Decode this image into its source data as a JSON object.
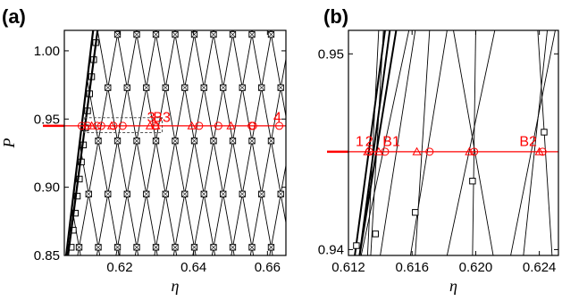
{
  "chart_data": [
    {
      "type": "line",
      "panel": "(a)",
      "xlabel": "η",
      "ylabel": "P",
      "xlim": [
        0.605,
        0.665
      ],
      "ylim": [
        0.85,
        1.015
      ],
      "xticks": [
        "0.62",
        "0.64",
        "0.66"
      ],
      "yticks": [
        "0.85",
        "0.90",
        "0.95",
        "1.00"
      ],
      "grid": false,
      "reference_line": {
        "axis": "y",
        "value": 0.945,
        "color": "#ff0000"
      },
      "dashed_box": {
        "x": [
          0.6105,
          0.6315
        ],
        "y": [
          0.94,
          0.951
        ],
        "color": "#555555"
      },
      "lattice": {
        "slope_magnitude": 15.0,
        "spacing": 0.0052,
        "start_x": 0.6086
      },
      "boundary_curves": [
        {
          "name": "",
          "x": [
            0.6055,
            0.6128
          ],
          "y": [
            0.85,
            1.015
          ]
        },
        {
          "name": "",
          "x": [
            0.606,
            0.614
          ],
          "y": [
            0.85,
            1.015
          ]
        }
      ],
      "markers": [
        {
          "shape": "circle",
          "x": [
            0.6097,
            0.6113,
            0.6139,
            0.615,
            0.6183,
            0.6208,
            0.6296,
            0.6415,
            0.6467,
            0.6557,
            0.6561,
            0.6632
          ],
          "y": 0.945
        },
        {
          "shape": "triangle",
          "x": [
            0.6124,
            0.6178,
            0.6282,
            0.6298,
            0.6395,
            0.6501
          ],
          "y": 0.945
        }
      ],
      "annotations": [
        {
          "text": "3",
          "x": 0.6285,
          "y": 0.948
        },
        {
          "text": "B3",
          "x": 0.6314,
          "y": 0.948
        },
        {
          "text": "4",
          "x": 0.6627,
          "y": 0.948
        }
      ]
    },
    {
      "type": "line",
      "panel": "(b)",
      "xlabel": "η",
      "ylabel": "",
      "xlim": [
        0.612,
        0.6252
      ],
      "ylim": [
        0.9397,
        0.9512
      ],
      "xticks": [
        "0.612",
        "0.616",
        "0.620",
        "0.624"
      ],
      "yticks": [
        "0.94",
        "0.95"
      ],
      "grid": false,
      "reference_line": {
        "axis": "y",
        "value": 0.945,
        "color": "#ff0000"
      },
      "curves": [
        {
          "x": [
            0.6124,
            0.6143
          ],
          "y": [
            0.9397,
            0.9512
          ]
        },
        {
          "x": [
            0.6127,
            0.6146
          ],
          "y": [
            0.9397,
            0.9512
          ]
        },
        {
          "x": [
            0.6127,
            0.615
          ],
          "y": [
            0.9397,
            0.9512
          ]
        },
        {
          "x": [
            0.6132,
            0.6139
          ],
          "y": [
            0.9397,
            0.9512
          ]
        },
        {
          "x": [
            0.6134,
            0.6142
          ],
          "y": [
            0.9397,
            0.9512
          ]
        },
        {
          "x": [
            0.6128,
            0.6158
          ],
          "y": [
            0.9397,
            0.9512
          ]
        },
        {
          "x": [
            0.614,
            0.6162
          ],
          "y": [
            0.9397,
            0.9512
          ]
        },
        {
          "x": [
            0.6162,
            0.6171
          ],
          "y": [
            0.9397,
            0.9512
          ]
        },
        {
          "x": [
            0.6159,
            0.6182
          ],
          "y": [
            0.9397,
            0.9512
          ]
        },
        {
          "x": [
            0.6182,
            0.6212
          ],
          "y": [
            0.9397,
            0.9512
          ]
        },
        {
          "x": [
            0.6198,
            0.62
          ],
          "y": [
            0.9397,
            0.9512
          ]
        },
        {
          "x": [
            0.6211,
            0.6186
          ],
          "y": [
            0.9397,
            0.9512
          ]
        },
        {
          "x": [
            0.6222,
            0.625
          ],
          "y": [
            0.9397,
            0.9512
          ]
        },
        {
          "x": [
            0.623,
            0.6245
          ],
          "y": [
            0.9397,
            0.9512
          ]
        },
        {
          "x": [
            0.6248,
            0.6239
          ],
          "y": [
            0.9397,
            0.9512
          ]
        }
      ],
      "markers": [
        {
          "shape": "circle",
          "x": [
            0.6133,
            0.6143,
            0.6171,
            0.6199,
            0.6242
          ],
          "y": 0.945
        },
        {
          "shape": "triangle",
          "x": [
            0.6132,
            0.6139,
            0.6163,
            0.6196,
            0.624
          ],
          "y": 0.945
        },
        {
          "shape": "square",
          "x": [
            0.6125,
            0.6137,
            0.6162,
            0.6198,
            0.6243
          ],
          "y": [
            0.9402,
            0.9408,
            0.9419,
            0.9435,
            0.946
          ]
        }
      ],
      "annotations": [
        {
          "text": "1",
          "x": 0.6127,
          "y": 0.9453
        },
        {
          "text": "2",
          "x": 0.6133,
          "y": 0.9453
        },
        {
          "text": "B1",
          "x": 0.6147,
          "y": 0.9453
        },
        {
          "text": "B2",
          "x": 0.6233,
          "y": 0.9453
        }
      ]
    }
  ]
}
